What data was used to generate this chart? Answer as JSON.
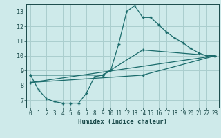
{
  "title": "",
  "xlabel": "Humidex (Indice chaleur)",
  "ylabel": "",
  "background_color": "#ceeaea",
  "grid_color": "#aacece",
  "line_color": "#1a6b6b",
  "xlim": [
    -0.5,
    23.5
  ],
  "ylim": [
    6.5,
    13.5
  ],
  "xticks": [
    0,
    1,
    2,
    3,
    4,
    5,
    6,
    7,
    8,
    9,
    10,
    11,
    12,
    13,
    14,
    15,
    16,
    17,
    18,
    19,
    20,
    21,
    22,
    23
  ],
  "yticks": [
    7,
    8,
    9,
    10,
    11,
    12,
    13
  ],
  "series1_x": [
    0,
    1,
    2,
    3,
    4,
    5,
    6,
    7,
    8,
    9,
    10,
    11,
    12,
    13,
    14,
    15,
    16,
    17,
    18,
    19,
    20,
    21,
    22,
    23
  ],
  "series1_y": [
    8.7,
    7.7,
    7.1,
    6.9,
    6.8,
    6.8,
    6.8,
    7.5,
    8.6,
    8.7,
    9.0,
    10.8,
    13.0,
    13.4,
    12.6,
    12.6,
    12.1,
    11.6,
    11.2,
    10.9,
    10.5,
    10.2,
    10.0,
    10.0
  ],
  "series2_x": [
    0,
    9,
    14,
    23
  ],
  "series2_y": [
    8.7,
    8.7,
    10.4,
    10.0
  ],
  "series3_x": [
    0,
    23
  ],
  "series3_y": [
    8.2,
    10.0
  ],
  "series4_x": [
    0,
    14,
    23
  ],
  "series4_y": [
    8.2,
    8.7,
    10.0
  ],
  "xlabel_fontsize": 6.5,
  "tick_fontsize": 5.5
}
